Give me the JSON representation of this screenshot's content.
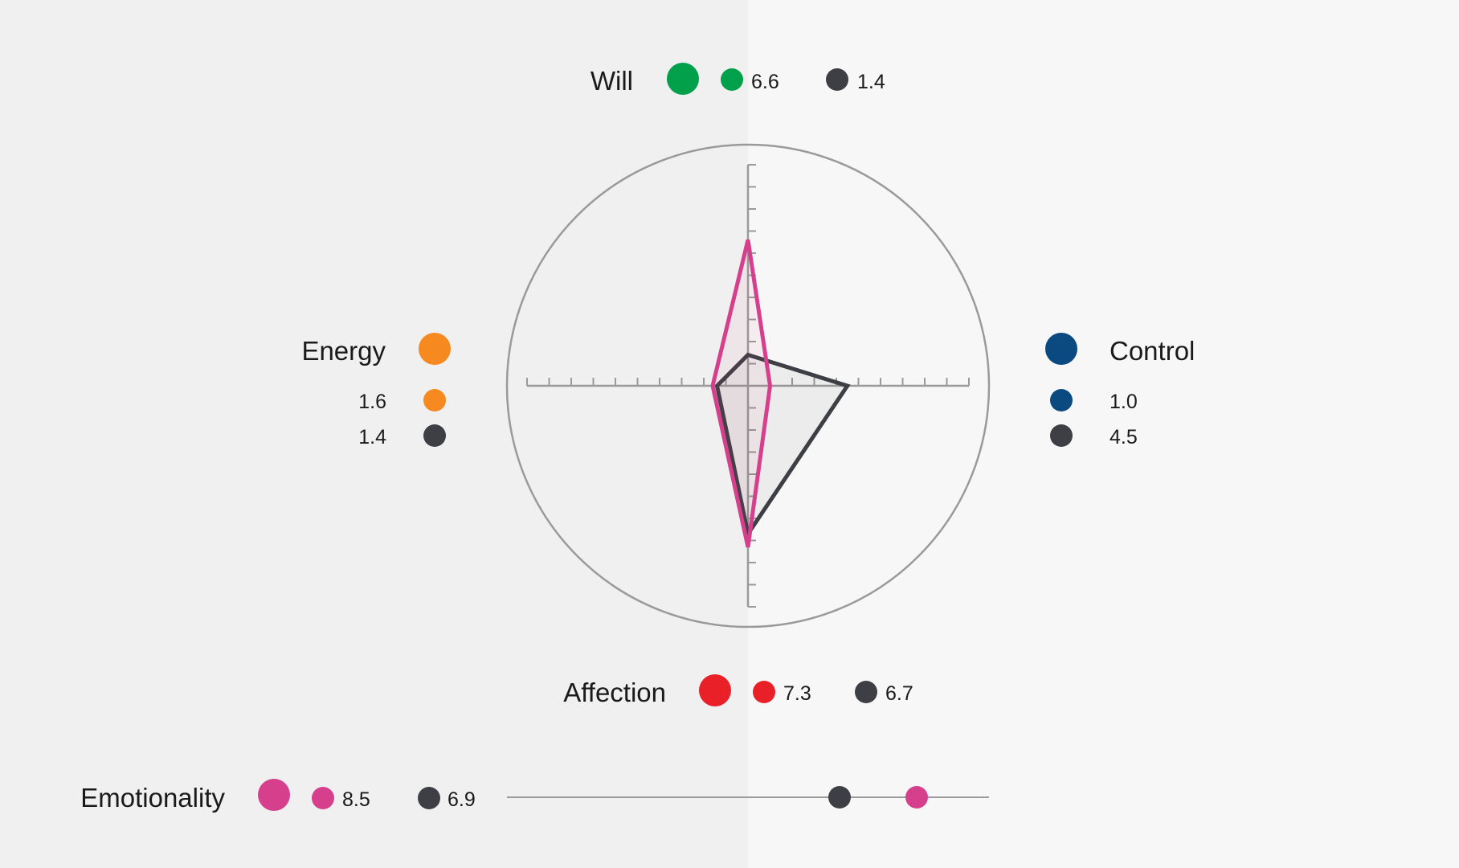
{
  "chart_data": {
    "type": "radar",
    "scale_max": 10,
    "series": [
      {
        "color": "#d63f8c",
        "role": "primary",
        "values": {
          "will": 6.6,
          "control": 1.0,
          "affection": 7.3,
          "energy": 1.6,
          "emotionality": 8.5
        }
      },
      {
        "color": "#3d3f45",
        "role": "comparison",
        "values": {
          "will": 1.4,
          "control": 4.5,
          "affection": 6.7,
          "energy": 1.4,
          "emotionality": 6.9
        }
      }
    ],
    "dimensions": [
      {
        "key": "will",
        "label": "Will",
        "color": "#02a04b",
        "primary": "6.6",
        "comparison": "1.4"
      },
      {
        "key": "control",
        "label": "Control",
        "color": "#0b4a80",
        "primary": "1.0",
        "comparison": "4.5"
      },
      {
        "key": "affection",
        "label": "Affection",
        "color": "#ea2028",
        "primary": "7.3",
        "comparison": "6.7"
      },
      {
        "key": "energy",
        "label": "Energy",
        "color": "#f6891f",
        "primary": "1.6",
        "comparison": "1.4"
      },
      {
        "key": "emotionality",
        "label": "Emotionality",
        "color": "#d63f8c",
        "primary": "8.5",
        "comparison": "6.9"
      }
    ],
    "grid": false,
    "legend": "none"
  },
  "colors": {
    "axis": "#9a9a9a",
    "comparison": "#3d3f45",
    "background_left": "#f0f0f0",
    "background_right": "#f7f7f7"
  }
}
